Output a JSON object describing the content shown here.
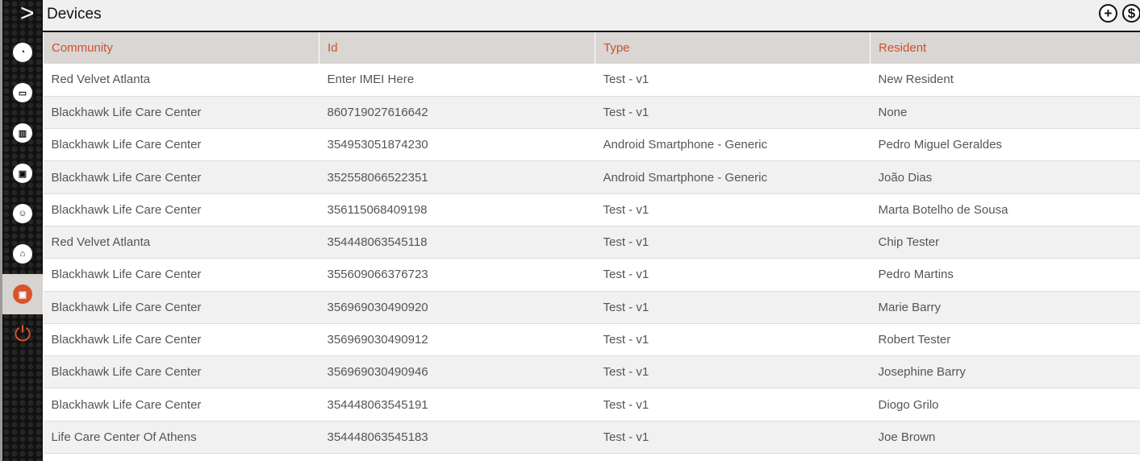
{
  "header": {
    "title": "Devices",
    "add_icon": "plus-circle-icon",
    "currency_icon": "dollar-circle-icon"
  },
  "sidebar": {
    "items": [
      {
        "name": "dashboard",
        "icon": "gauge-icon",
        "glyph": "◔"
      },
      {
        "name": "briefcase",
        "icon": "briefcase-icon",
        "glyph": "▭"
      },
      {
        "name": "buildings",
        "icon": "building-icon",
        "glyph": "▥"
      },
      {
        "name": "devices",
        "icon": "device-icon",
        "glyph": "▣"
      },
      {
        "name": "residents",
        "icon": "person-icon",
        "glyph": "☺"
      },
      {
        "name": "furniture",
        "icon": "couch-icon",
        "glyph": "⌂"
      },
      {
        "name": "devices-active",
        "icon": "device-icon",
        "glyph": "▣"
      },
      {
        "name": "logout",
        "icon": "power-icon",
        "glyph": "⏻"
      }
    ],
    "active": "devices-active"
  },
  "table": {
    "columns": [
      "Community",
      "Id",
      "Type",
      "Resident"
    ],
    "rows": [
      [
        "Red Velvet Atlanta",
        "Enter IMEI Here",
        "Test - v1",
        "New Resident"
      ],
      [
        "Blackhawk Life Care Center",
        "860719027616642",
        "Test - v1",
        "None"
      ],
      [
        "Blackhawk Life Care Center",
        "354953051874230",
        "Android Smartphone - Generic",
        "Pedro Miguel Geraldes"
      ],
      [
        "Blackhawk Life Care Center",
        "352558066522351",
        "Android Smartphone - Generic",
        "João Dias"
      ],
      [
        "Blackhawk Life Care Center",
        "356115068409198",
        "Test - v1",
        "Marta Botelho de Sousa"
      ],
      [
        "Red Velvet Atlanta",
        "354448063545118",
        "Test - v1",
        "Chip Tester"
      ],
      [
        "Blackhawk Life Care Center",
        "355609066376723",
        "Test - v1",
        "Pedro Martins"
      ],
      [
        "Blackhawk Life Care Center",
        "356969030490920",
        "Test - v1",
        "Marie Barry"
      ],
      [
        "Blackhawk Life Care Center",
        "356969030490912",
        "Test - v1",
        "Robert Tester"
      ],
      [
        "Blackhawk Life Care Center",
        "356969030490946",
        "Test - v1",
        "Josephine Barry"
      ],
      [
        "Blackhawk Life Care Center",
        "354448063545191",
        "Test - v1",
        "Diogo Grilo"
      ],
      [
        "Life Care Center Of Athens",
        "354448063545183",
        "Test - v1",
        "Joe Brown"
      ]
    ]
  },
  "colors": {
    "accent": "#d0502a",
    "header_bg": "#d9d6d4"
  }
}
